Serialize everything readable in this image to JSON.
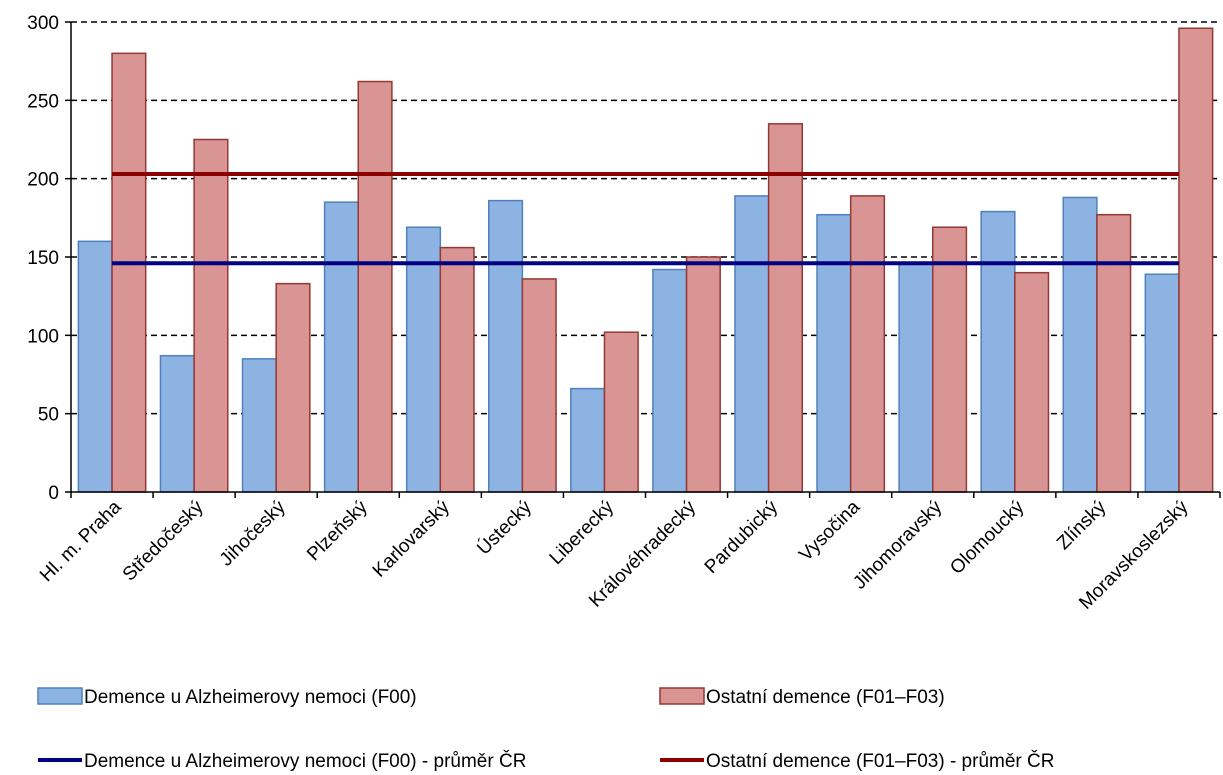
{
  "chart_data": {
    "type": "bar",
    "categories": [
      "Hl. m. Praha",
      "Středočeský",
      "Jihočeský",
      "Plzeňský",
      "Karlovarský",
      "Ústecký",
      "Liberecký",
      "Královéhradecký",
      "Pardubický",
      "Vysočina",
      "Jihomoravský",
      "Olomoucký",
      "Zlínský",
      "Moravskoslezský"
    ],
    "series": [
      {
        "name": "Demence u Alzheimerovy nemoci (F00)",
        "type": "bar",
        "fill": "#8db3e2",
        "stroke": "#4f81bd",
        "values": [
          160,
          87,
          85,
          185,
          169,
          186,
          66,
          142,
          189,
          177,
          146,
          179,
          188,
          139
        ]
      },
      {
        "name": "Ostatní demence (F01–F03)",
        "type": "bar",
        "fill": "#d99594",
        "stroke": "#953735",
        "values": [
          280,
          225,
          133,
          262,
          156,
          136,
          102,
          150,
          235,
          189,
          169,
          140,
          177,
          296
        ]
      }
    ],
    "reference_lines": [
      {
        "name": "Demence u Alzheimerovy nemoci (F00) - průměr ČR",
        "value": 146,
        "color": "#000080"
      },
      {
        "name": "Ostatní demence (F01–F03) - průměr ČR",
        "value": 203,
        "color": "#8b0000"
      }
    ],
    "yticks": [
      0,
      50,
      100,
      150,
      200,
      250,
      300
    ],
    "ylim": [
      0,
      300
    ],
    "grid": true,
    "legend_position": "bottom"
  }
}
